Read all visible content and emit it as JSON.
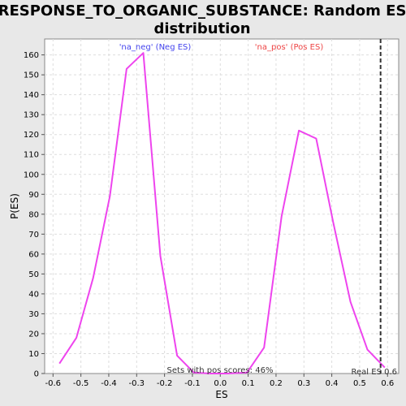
{
  "chart_data": {
    "type": "line",
    "title_line1": "RESPONSE_TO_ORGANIC_SUBSTANCE: Random ES",
    "title_line2": "distribution",
    "xlabel": "ES",
    "ylabel": "P(ES)",
    "xlim": [
      -0.63,
      0.64
    ],
    "ylim": [
      0,
      168
    ],
    "grid": true,
    "xticks": [
      -0.6,
      -0.5,
      -0.4,
      -0.3,
      -0.2,
      -0.1,
      0.0,
      0.1,
      0.2,
      0.3,
      0.4,
      0.5,
      0.6
    ],
    "xtick_labels": [
      "-0.6",
      "-0.5",
      "-0.4",
      "-0.3",
      "-0.2",
      "-0.1",
      "0.0",
      "0.1",
      "0.2",
      "0.3",
      "0.4",
      "0.5",
      "0.6"
    ],
    "yticks": [
      0,
      10,
      20,
      30,
      40,
      50,
      60,
      70,
      80,
      90,
      100,
      110,
      120,
      130,
      140,
      150,
      160
    ],
    "series": [
      {
        "color": "#ee44ee",
        "x": [
          -0.577,
          -0.516,
          -0.456,
          -0.396,
          -0.336,
          -0.276,
          -0.215,
          -0.155,
          -0.095,
          -0.035,
          0.025,
          0.096,
          0.157,
          0.22,
          0.282,
          0.344,
          0.405,
          0.467,
          0.528,
          0.59
        ],
        "y": [
          5,
          18,
          48,
          89,
          153,
          161,
          59,
          9,
          0.5,
          0,
          0,
          0.5,
          13,
          79,
          122,
          118,
          76,
          36,
          12,
          3
        ]
      }
    ],
    "real_es_value": 0.575,
    "annotations": {
      "neg_label": "'na_neg' (Neg ES)",
      "pos_label": "'na_pos' (Pos ES)",
      "sets_label": "Sets with pos scores: 46%",
      "real_label": "Real ES 0.6"
    },
    "colors": {
      "neg": "#4444ee",
      "pos": "#ee4444",
      "line": "#ee44ee",
      "real_line": "#333333"
    }
  }
}
